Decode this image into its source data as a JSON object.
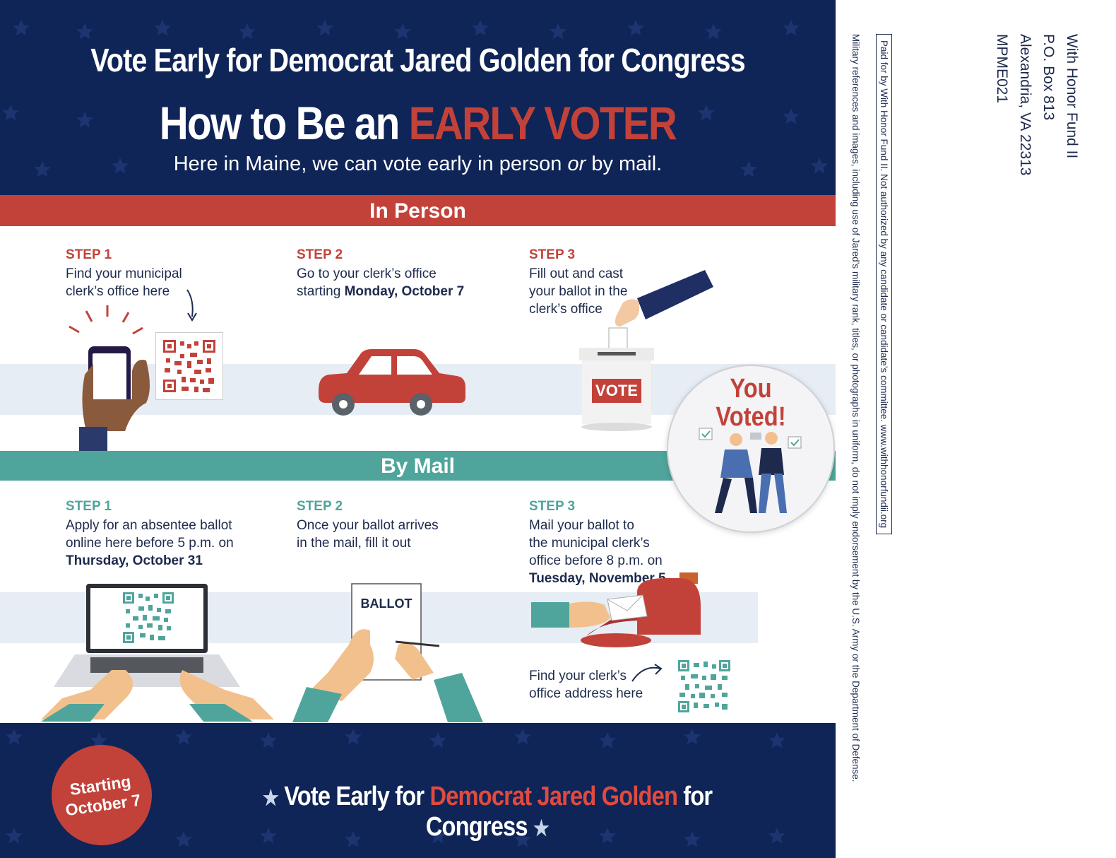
{
  "header": {
    "line1": "Vote Early for Democrat Jared Golden for Congress",
    "line2_prefix": "How to Be an ",
    "line2_accent": "EARLY VOTER",
    "subtitle_prefix": "Here in Maine, we can vote early in person ",
    "subtitle_italic": "or",
    "subtitle_suffix": " by mail."
  },
  "in_person": {
    "band_label": "In Person",
    "steps": [
      {
        "label": "STEP 1",
        "text_line1": "Find your municipal",
        "text_line2": "clerk’s office here"
      },
      {
        "label": "STEP 2",
        "text_line1": "Go to your clerk’s office",
        "text_line2_prefix": "starting ",
        "text_line2_bold": "Monday, October 7"
      },
      {
        "label": "STEP 3",
        "text_line1": "Fill out and cast",
        "text_line2": "your ballot in the",
        "text_line3": "clerk’s office"
      }
    ],
    "ballot_box_label": "VOTE"
  },
  "sticker": {
    "line1": "You",
    "line2": "Voted!"
  },
  "by_mail": {
    "band_label": "By Mail",
    "steps": [
      {
        "label": "STEP 1",
        "text_line1": "Apply for an absentee ballot",
        "text_line2": "online here before 5 p.m. on",
        "text_line3_bold": "Thursday, October 31"
      },
      {
        "label": "STEP 2",
        "text_line1": "Once your ballot arrives",
        "text_line2": "in the mail, fill it out"
      },
      {
        "label": "STEP 3",
        "text_line1": "Mail your ballot to",
        "text_line2": "the municipal clerk’s",
        "text_line3": "office before 8 p.m. on",
        "text_line4_bold": "Tuesday, November 5"
      }
    ],
    "ballot_paper_label": "BALLOT",
    "address_note_line1": "Find your clerk’s",
    "address_note_line2": "office address here"
  },
  "footer": {
    "badge_line1": "Starting",
    "badge_line2": "October 7",
    "text_prefix": "Vote Early for ",
    "text_accent": "Democrat Jared Golden",
    "text_suffix": " for Congress",
    "star": "★"
  },
  "return_address": {
    "line1": "With Honor Fund II",
    "line2": "P.O. Box 813",
    "line3": "Alexandria, VA 22313",
    "line4": "MPME021"
  },
  "disclaimer": {
    "paid_for": "Paid for by With Honor Fund II. Not authorized by any candidate or candidate’s committee. www.withhonorfundii.org",
    "military": "Military references and images, including use of Jared’s military rank, titles, or photographs in uniform, do not imply endorsement by the U.S. Army or the Department of Defense."
  },
  "colors": {
    "navy": "#0f2457",
    "red": "#c2423a",
    "teal": "#4fa59b",
    "stripe": "#e7edf5"
  }
}
